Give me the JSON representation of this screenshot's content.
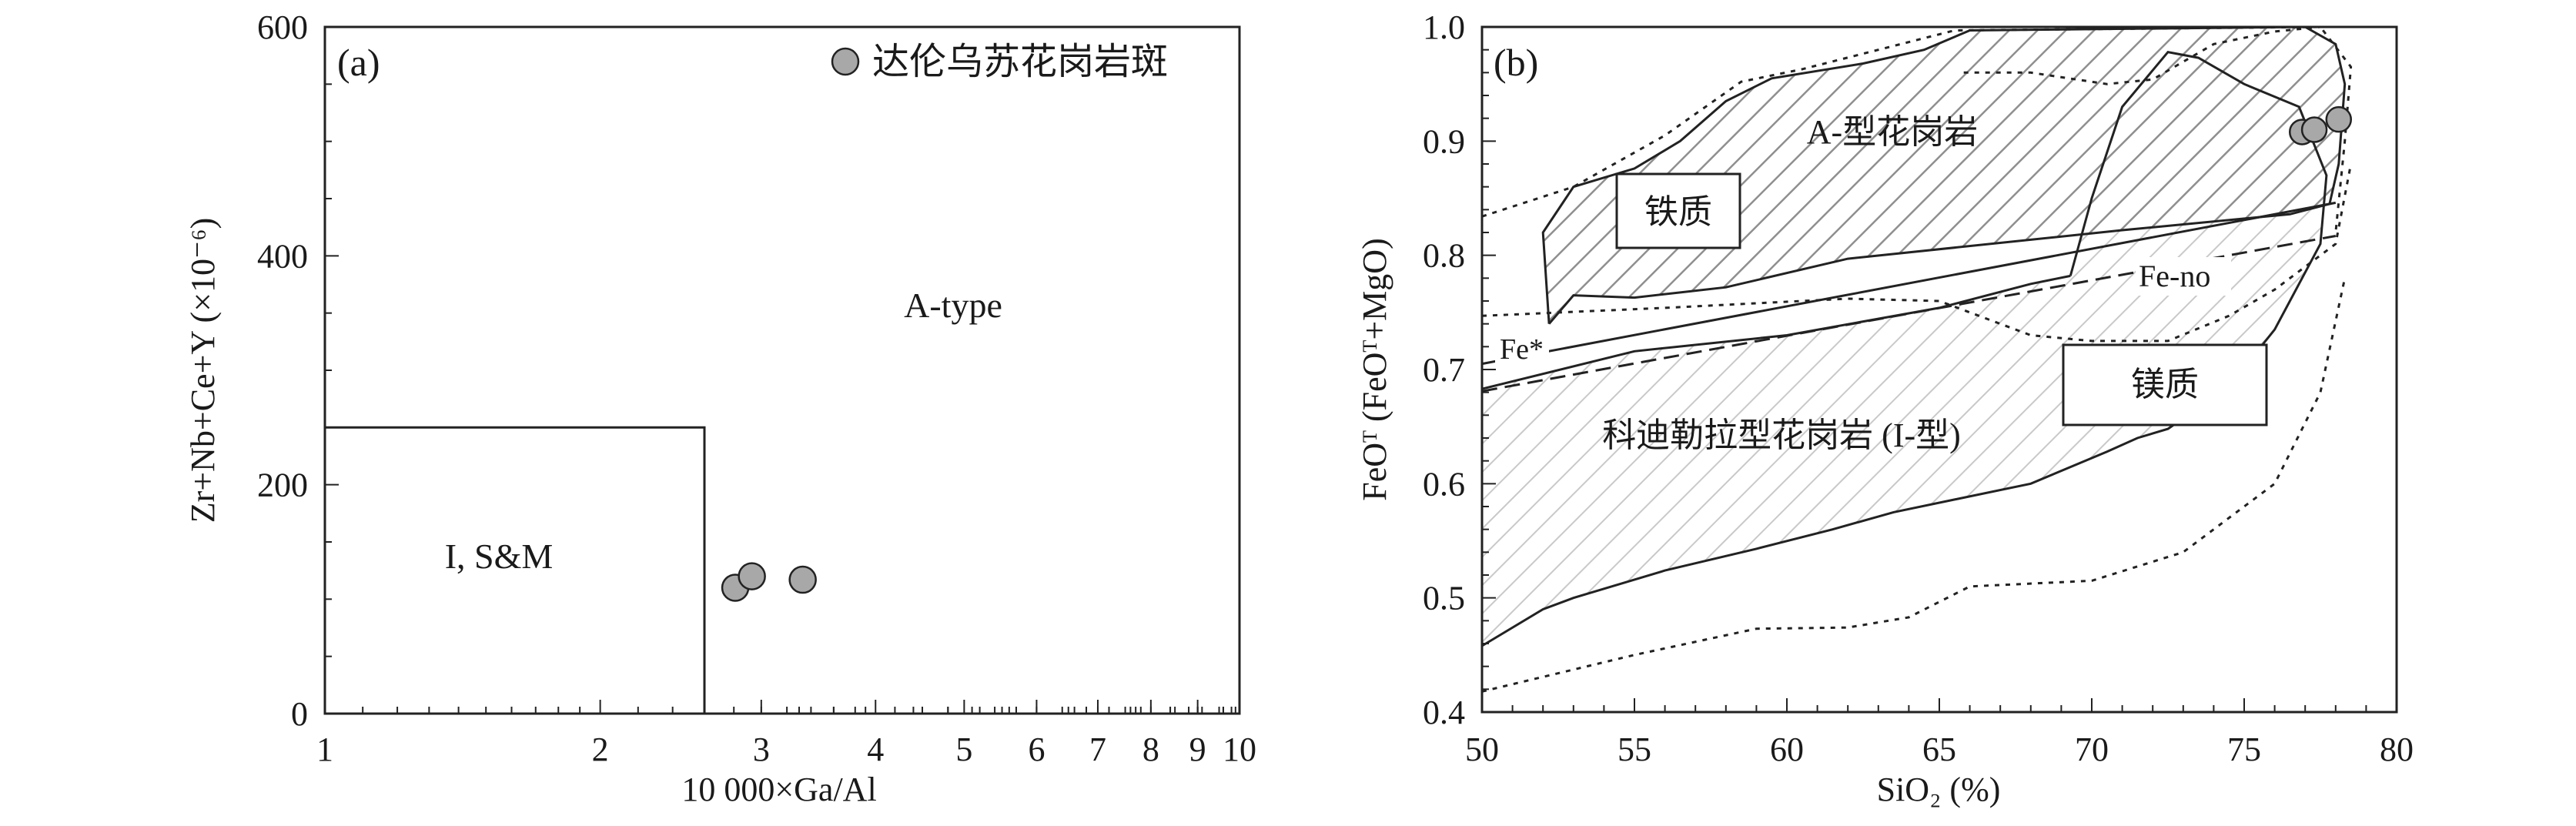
{
  "chart_data": [
    {
      "panel": "(a)",
      "type": "scatter",
      "xscale": "log",
      "xlim": [
        1,
        10
      ],
      "ylim": [
        0,
        600
      ],
      "xlabel": "10 000×Ga/Al",
      "ylabel": "Zr+Nb+Ce+Y (×10⁻⁶)",
      "xticks": [
        1,
        2,
        3,
        4,
        5,
        6,
        7,
        8,
        9,
        10
      ],
      "yticks": [
        0,
        200,
        400,
        600
      ],
      "legend": {
        "placement": "top-right",
        "label": "达伦乌苏花岗岩斑",
        "marker": "filled-circle",
        "color": "#a8a8a8"
      },
      "fields": [
        {
          "label": "I, S&M",
          "boundary": [
            [
              1,
              250
            ],
            [
              2.6,
              250
            ],
            [
              2.6,
              0
            ]
          ]
        },
        {
          "label": "A-type"
        }
      ],
      "series": [
        {
          "name": "达伦乌苏花岗岩斑",
          "points": [
            [
              2.81,
              110
            ],
            [
              2.93,
              120
            ],
            [
              3.33,
              117
            ]
          ]
        }
      ]
    },
    {
      "panel": "(b)",
      "type": "scatter",
      "xlim": [
        50,
        80
      ],
      "ylim": [
        0.4,
        1.0
      ],
      "xlabel": "SiO₂ (%)",
      "ylabel": "FeOᵀ (FeOᵀ+MgO)",
      "xticks": [
        50,
        55,
        60,
        65,
        70,
        75,
        80
      ],
      "yticks": [
        0.4,
        0.5,
        0.6,
        0.7,
        0.8,
        0.9,
        1.0
      ],
      "field_labels": {
        "a_type": "A-型花岗岩",
        "ferroan": "铁质",
        "magnesian": "镁质",
        "cordilleran": "科迪勒拉型花岗岩 (I-型)",
        "fe_star": "Fe*",
        "fe_no": "Fe-no"
      },
      "series": [
        {
          "name": "达伦乌苏花岗岩斑",
          "points": [
            [
              76.9,
              0.908
            ],
            [
              77.3,
              0.91
            ],
            [
              78.1,
              0.919
            ]
          ]
        }
      ],
      "lines": {
        "fe_star": [
          [
            50,
            0.705
          ],
          [
            78,
            0.846
          ]
        ],
        "fe_no": [
          [
            50,
            0.681
          ],
          [
            78,
            0.817
          ]
        ],
        "a_type_field": [
          [
            52.2,
            0.74
          ],
          [
            52.0,
            0.82
          ],
          [
            53.0,
            0.86
          ],
          [
            55.0,
            0.876
          ],
          [
            56.5,
            0.9
          ],
          [
            58.0,
            0.935
          ],
          [
            59.5,
            0.955
          ],
          [
            62.5,
            0.968
          ],
          [
            64.5,
            0.98
          ],
          [
            66.0,
            0.997
          ],
          [
            77.0,
            1.0
          ],
          [
            78.0,
            0.985
          ],
          [
            78.3,
            0.95
          ],
          [
            78.1,
            0.88
          ],
          [
            77.8,
            0.845
          ],
          [
            76.5,
            0.836
          ],
          [
            71.0,
            0.822
          ],
          [
            62.0,
            0.797
          ],
          [
            58.0,
            0.772
          ],
          [
            55.0,
            0.763
          ],
          [
            53.0,
            0.765
          ],
          [
            52.2,
            0.74
          ]
        ],
        "a_type_inner": [
          [
            69.3,
            0.782
          ],
          [
            70.0,
            0.85
          ],
          [
            71.0,
            0.93
          ],
          [
            72.5,
            0.978
          ],
          [
            73.5,
            0.973
          ],
          [
            75.0,
            0.95
          ],
          [
            76.8,
            0.93
          ],
          [
            77.7,
            0.87
          ],
          [
            77.5,
            0.81
          ],
          [
            76.0,
            0.735
          ],
          [
            74.5,
            0.685
          ],
          [
            72.5,
            0.648
          ],
          [
            71.5,
            0.64
          ],
          [
            70.5,
            0.628
          ],
          [
            68.0,
            0.6
          ],
          [
            63.5,
            0.575
          ],
          [
            61.5,
            0.56
          ],
          [
            59.0,
            0.543
          ],
          [
            56.0,
            0.524
          ],
          [
            53.0,
            0.5
          ],
          [
            52.0,
            0.49
          ],
          [
            50.0,
            0.458
          ]
        ],
        "cordilleran_upper": [
          [
            50,
            0.683
          ],
          [
            55.0,
            0.716
          ],
          [
            60.0,
            0.73
          ],
          [
            65.0,
            0.754
          ],
          [
            68.0,
            0.775
          ],
          [
            69.3,
            0.782
          ]
        ],
        "ferroan_dotted": [
          [
            50,
            0.834
          ],
          [
            53.0,
            0.86
          ],
          [
            56.0,
            0.905
          ],
          [
            58.5,
            0.952
          ],
          [
            60.5,
            0.963
          ],
          [
            63.0,
            0.98
          ],
          [
            65.5,
            0.997
          ],
          [
            77.5,
            1.0
          ],
          [
            78.5,
            0.965
          ],
          [
            78.3,
            0.9
          ],
          [
            78.0,
            0.82
          ]
        ],
        "magnesian_dotted": [
          [
            50,
            0.418
          ],
          [
            55.0,
            0.45
          ],
          [
            59.0,
            0.473
          ],
          [
            62.0,
            0.474
          ],
          [
            64.0,
            0.483
          ],
          [
            66.0,
            0.51
          ],
          [
            70.0,
            0.515
          ],
          [
            73.0,
            0.54
          ],
          [
            76.0,
            0.6
          ],
          [
            77.5,
            0.68
          ],
          [
            78.3,
            0.78
          ]
        ],
        "inner_dotted": [
          [
            50,
            0.747
          ],
          [
            56.0,
            0.754
          ],
          [
            62.0,
            0.762
          ],
          [
            65.0,
            0.76
          ],
          [
            68.0,
            0.73
          ],
          [
            70.0,
            0.725
          ],
          [
            72.5,
            0.725
          ],
          [
            74.5,
            0.747
          ],
          [
            76.0,
            0.77
          ],
          [
            78.0,
            0.81
          ],
          [
            78.5,
            0.88
          ]
        ],
        "a_type_dotted": [
          [
            65.8,
            0.96
          ],
          [
            68.0,
            0.96
          ],
          [
            70.5,
            0.95
          ],
          [
            72.0,
            0.954
          ],
          [
            74.0,
            0.985
          ],
          [
            76.0,
            0.996
          ],
          [
            77.5,
            1.0
          ]
        ]
      }
    }
  ]
}
